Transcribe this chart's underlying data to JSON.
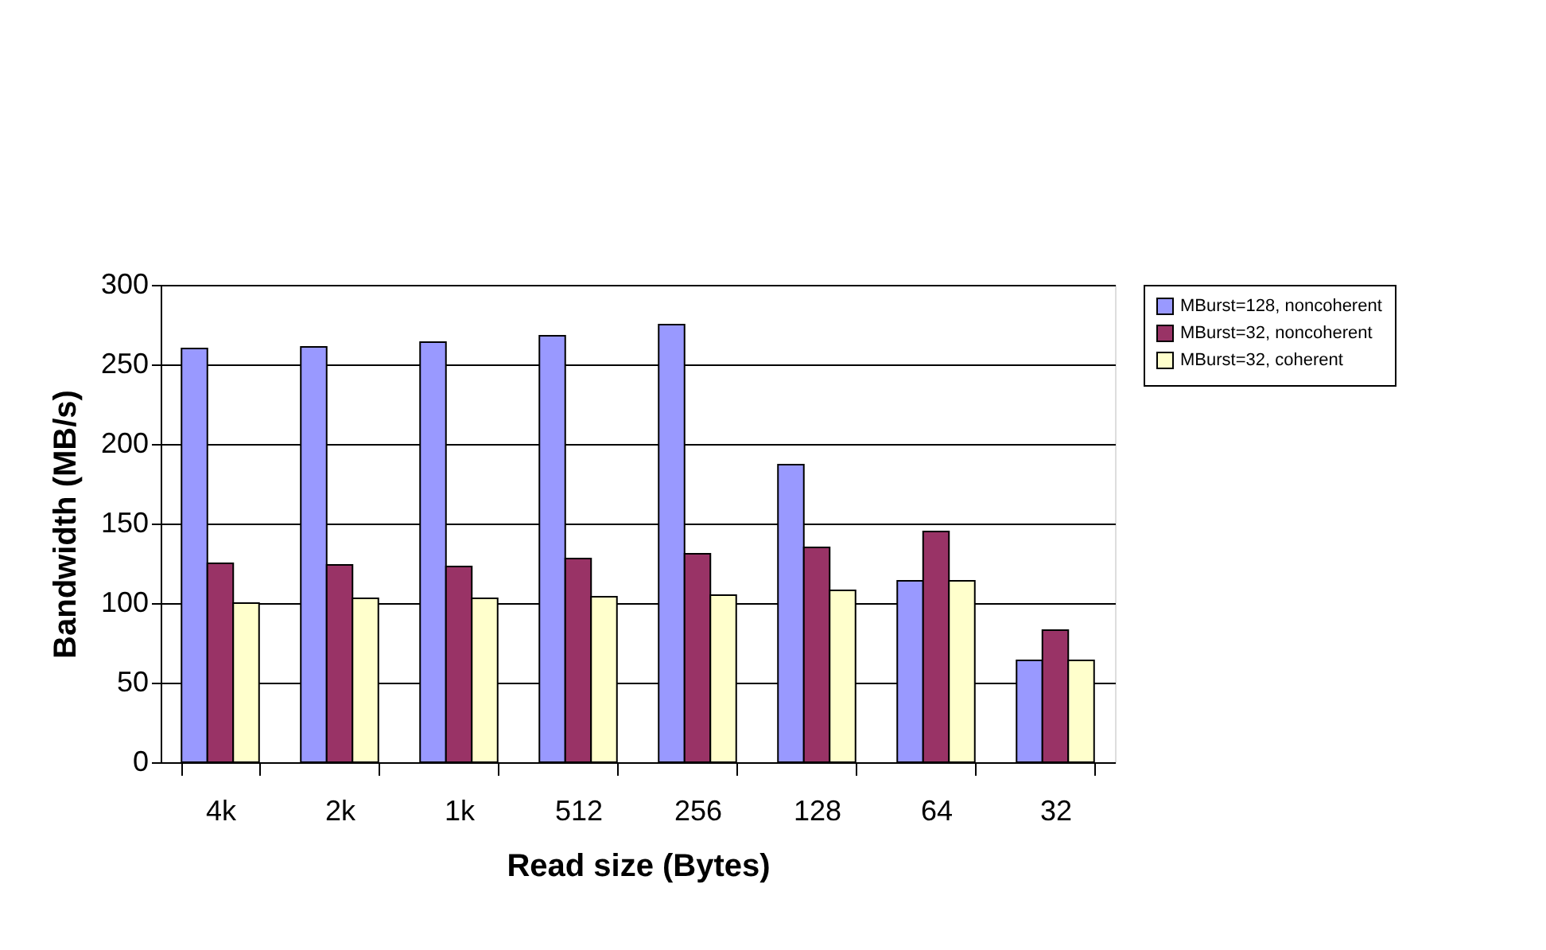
{
  "chart_data": {
    "type": "bar",
    "xlabel": "Read size (Bytes)",
    "ylabel": "Bandwidth (MB/s)",
    "categories": [
      "4k",
      "2k",
      "1k",
      "512",
      "256",
      "128",
      "64",
      "32"
    ],
    "series": [
      {
        "name": "MBurst=128, noncoherent",
        "color": "#9999ff",
        "values": [
          260,
          261,
          264,
          268,
          275,
          187,
          114,
          64
        ]
      },
      {
        "name": "MBurst=32, noncoherent",
        "color": "#993366",
        "values": [
          125,
          124,
          123,
          128,
          131,
          135,
          145,
          83
        ]
      },
      {
        "name": "MBurst=32, coherent",
        "color": "#ffffcc",
        "values": [
          100,
          103,
          103,
          104,
          105,
          108,
          114,
          64
        ]
      }
    ],
    "ylim": [
      0,
      300
    ],
    "yticks": [
      0,
      50,
      100,
      150,
      200,
      250,
      300
    ],
    "grid": "y",
    "legend": "right"
  }
}
